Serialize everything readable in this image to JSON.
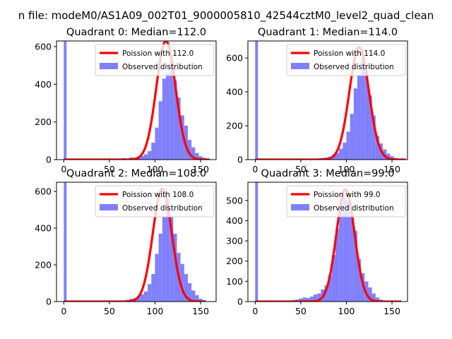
{
  "figure": {
    "suptitle": "n file: modeM0/AS1A09_002T01_9000005810_42544cztM0_level2_quad_clean",
    "background": "#ffffff"
  },
  "colors": {
    "hist": "#8080ff",
    "poisson": "#ff0000"
  },
  "chart_data": [
    {
      "type": "bar",
      "title": "Quadrant 0: Median=112.0",
      "xlim": [
        -8,
        167
      ],
      "ylim": [
        0,
        630
      ],
      "xticks": [
        0,
        50,
        100,
        150
      ],
      "yticks": [
        0,
        200,
        400,
        600
      ],
      "legend": [
        "Poission with 112.0",
        "Observed distribution"
      ],
      "legend_position": "top-right",
      "median": 112.0,
      "hist_bins": [
        [
          0,
          3,
          630
        ],
        [
          64,
          4,
          8
        ],
        [
          68,
          4,
          6
        ],
        [
          72,
          4,
          12
        ],
        [
          76,
          4,
          10
        ],
        [
          80,
          4,
          15
        ],
        [
          84,
          4,
          20
        ],
        [
          88,
          4,
          28
        ],
        [
          92,
          4,
          45
        ],
        [
          96,
          4,
          90
        ],
        [
          100,
          4,
          170
        ],
        [
          104,
          4,
          310
        ],
        [
          108,
          4,
          430
        ],
        [
          112,
          4,
          460
        ],
        [
          116,
          4,
          520
        ],
        [
          120,
          4,
          420
        ],
        [
          124,
          4,
          330
        ],
        [
          128,
          4,
          235
        ],
        [
          132,
          4,
          180
        ],
        [
          136,
          4,
          105
        ],
        [
          140,
          4,
          65
        ],
        [
          144,
          4,
          35
        ],
        [
          148,
          4,
          18
        ],
        [
          152,
          4,
          10
        ],
        [
          156,
          4,
          5
        ]
      ],
      "poisson": {
        "mean": 112.0,
        "peak": 630,
        "sigma": 10.6,
        "xrange": [
          0,
          160
        ]
      }
    },
    {
      "type": "bar",
      "title": "Quadrant 1: Median=114.0",
      "xlim": [
        -8,
        167
      ],
      "ylim": [
        0,
        700
      ],
      "xticks": [
        0,
        50,
        100,
        150
      ],
      "yticks": [
        0,
        200,
        400,
        600
      ],
      "legend": [
        "Poission with 114.0",
        "Observed distribution"
      ],
      "legend_position": "top-right",
      "median": 114.0,
      "hist_bins": [
        [
          0,
          3,
          700
        ],
        [
          68,
          4,
          8
        ],
        [
          72,
          4,
          10
        ],
        [
          76,
          4,
          12
        ],
        [
          80,
          4,
          18
        ],
        [
          84,
          4,
          30
        ],
        [
          88,
          4,
          40
        ],
        [
          92,
          4,
          65
        ],
        [
          96,
          4,
          100
        ],
        [
          100,
          4,
          165
        ],
        [
          104,
          4,
          270
        ],
        [
          108,
          4,
          420
        ],
        [
          112,
          4,
          500
        ],
        [
          116,
          4,
          600
        ],
        [
          120,
          4,
          530
        ],
        [
          124,
          4,
          380
        ],
        [
          128,
          4,
          260
        ],
        [
          132,
          4,
          140
        ],
        [
          136,
          4,
          95
        ],
        [
          140,
          4,
          60
        ],
        [
          144,
          4,
          35
        ],
        [
          148,
          4,
          20
        ],
        [
          152,
          4,
          10
        ],
        [
          156,
          4,
          6
        ]
      ],
      "poisson": {
        "mean": 114.0,
        "peak": 665,
        "sigma": 10.7,
        "xrange": [
          0,
          165
        ]
      }
    },
    {
      "type": "bar",
      "title": "Quadrant 2: Median=108.0",
      "xlim": [
        -8,
        167
      ],
      "ylim": [
        0,
        650
      ],
      "xticks": [
        0,
        50,
        100,
        150
      ],
      "yticks": [
        0,
        200,
        400,
        600
      ],
      "legend": [
        "Poission with 108.0",
        "Observed distribution"
      ],
      "legend_position": "top-right",
      "median": 108.0,
      "hist_bins": [
        [
          0,
          3,
          650
        ],
        [
          64,
          4,
          6
        ],
        [
          68,
          4,
          10
        ],
        [
          72,
          4,
          15
        ],
        [
          76,
          4,
          20
        ],
        [
          80,
          4,
          30
        ],
        [
          84,
          4,
          40
        ],
        [
          88,
          4,
          55
        ],
        [
          92,
          4,
          95
        ],
        [
          96,
          4,
          150
        ],
        [
          100,
          4,
          260
        ],
        [
          104,
          4,
          370
        ],
        [
          108,
          4,
          460
        ],
        [
          112,
          4,
          560
        ],
        [
          116,
          4,
          460
        ],
        [
          120,
          4,
          370
        ],
        [
          124,
          4,
          265
        ],
        [
          128,
          4,
          205
        ],
        [
          132,
          4,
          150
        ],
        [
          136,
          4,
          100
        ],
        [
          140,
          4,
          60
        ],
        [
          144,
          4,
          35
        ],
        [
          148,
          4,
          15
        ],
        [
          152,
          4,
          8
        ]
      ],
      "poisson": {
        "mean": 108.0,
        "peak": 615,
        "sigma": 10.4,
        "xrange": [
          0,
          155
        ]
      }
    },
    {
      "type": "bar",
      "title": "Quadrant 3: Median=99.0",
      "xlim": [
        -8,
        167
      ],
      "ylim": [
        0,
        590
      ],
      "xticks": [
        0,
        50,
        100,
        150
      ],
      "yticks": [
        0,
        100,
        200,
        300,
        400,
        500
      ],
      "legend": [
        "Poission with 99.0",
        "Observed distribution"
      ],
      "legend_position": "top-right",
      "median": 99.0,
      "hist_bins": [
        [
          0,
          3,
          590
        ],
        [
          40,
          4,
          8
        ],
        [
          44,
          4,
          10
        ],
        [
          48,
          4,
          15
        ],
        [
          52,
          4,
          20
        ],
        [
          56,
          4,
          18
        ],
        [
          60,
          4,
          25
        ],
        [
          64,
          4,
          35
        ],
        [
          68,
          4,
          40
        ],
        [
          72,
          4,
          60
        ],
        [
          76,
          4,
          80
        ],
        [
          80,
          4,
          130
        ],
        [
          84,
          4,
          230
        ],
        [
          88,
          4,
          360
        ],
        [
          92,
          4,
          450
        ],
        [
          96,
          4,
          520
        ],
        [
          100,
          4,
          500
        ],
        [
          104,
          4,
          430
        ],
        [
          108,
          4,
          350
        ],
        [
          112,
          4,
          210
        ],
        [
          116,
          4,
          140
        ],
        [
          120,
          4,
          100
        ],
        [
          124,
          4,
          70
        ],
        [
          128,
          4,
          40
        ],
        [
          132,
          4,
          20
        ],
        [
          136,
          4,
          10
        ],
        [
          140,
          4,
          5
        ]
      ],
      "poisson": {
        "mean": 99.0,
        "peak": 555,
        "sigma": 9.95,
        "xrange": [
          0,
          160
        ]
      }
    }
  ]
}
